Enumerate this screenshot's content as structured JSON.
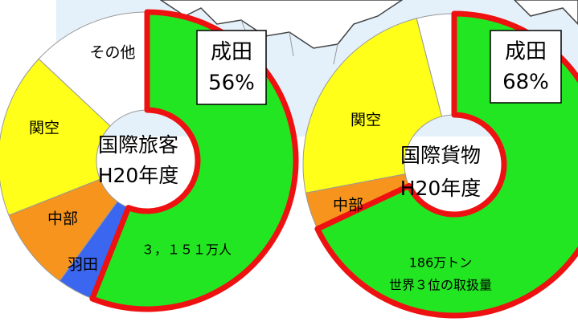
{
  "chart_data": [
    {
      "type": "donut",
      "categories": [
        "成田",
        "羽田",
        "中部",
        "関空",
        "その他"
      ],
      "values": [
        56,
        4,
        9,
        18,
        13
      ],
      "value_labels": [
        "56%",
        null,
        null,
        null,
        null
      ],
      "colors": [
        "#22e622",
        "#3a66f0",
        "#f7941d",
        "#ffff1a",
        "#ffffff"
      ],
      "center_label": [
        "国際旅客",
        "H20年度"
      ],
      "annotation": "３，１５１万人"
    },
    {
      "type": "donut",
      "categories": [
        "成田",
        "中部",
        "関空",
        "その他"
      ],
      "values": [
        68,
        4,
        24,
        4
      ],
      "value_labels": [
        "68%",
        null,
        null,
        null
      ],
      "colors": [
        "#22e622",
        "#f7941d",
        "#ffff1a",
        "#ffffff"
      ],
      "center_label": [
        "国際貨物",
        "H20年度"
      ],
      "annotation": [
        "186万トン",
        "世界３位の取扱量"
      ]
    }
  ]
}
